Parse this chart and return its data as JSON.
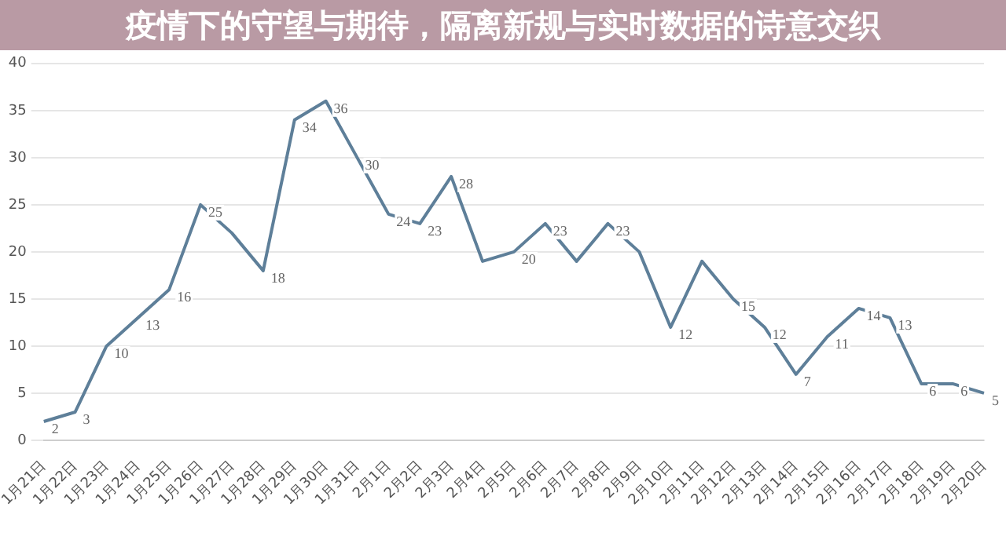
{
  "chart_data": {
    "type": "line",
    "title": "疫情下的守望与期待，隔离新规与实时数据的诗意交织",
    "categories": [
      "1月21日",
      "1月22日",
      "1月23日",
      "1月24日",
      "1月25日",
      "1月26日",
      "1月27日",
      "1月28日",
      "1月29日",
      "1月30日",
      "1月31日",
      "2月1日",
      "2月2日",
      "2月3日",
      "2月4日",
      "2月5日",
      "2月6日",
      "2月7日",
      "2月8日",
      "2月9日",
      "2月10日",
      "2月11日",
      "2月12日",
      "2月13日",
      "2月14日",
      "2月15日",
      "2月16日",
      "2月17日",
      "2月18日",
      "2月19日",
      "2月20日"
    ],
    "series": [
      {
        "color": "#5e7f99",
        "values": [
          2,
          3,
          10,
          13,
          16,
          25,
          22,
          18,
          34,
          36,
          30,
          24,
          23,
          28,
          19,
          20,
          23,
          19,
          23,
          20,
          12,
          19,
          15,
          12,
          7,
          11,
          14,
          13,
          6,
          6,
          5
        ],
        "value_labels": [
          "2",
          "3",
          "10",
          "13",
          "16",
          "25",
          null,
          "18",
          "34",
          "36",
          "30",
          "24",
          "23",
          "28",
          null,
          "20",
          "23",
          null,
          "23",
          null,
          "12",
          null,
          "15",
          "12",
          "7",
          "11",
          "14",
          "13",
          "6",
          "6",
          "5"
        ]
      }
    ],
    "ylim": [
      0,
      40
    ],
    "yticks": [
      0,
      5,
      10,
      15,
      20,
      25,
      30,
      35,
      40
    ],
    "grid": "y",
    "legend": false,
    "marker": "none",
    "line_style": "solid"
  }
}
